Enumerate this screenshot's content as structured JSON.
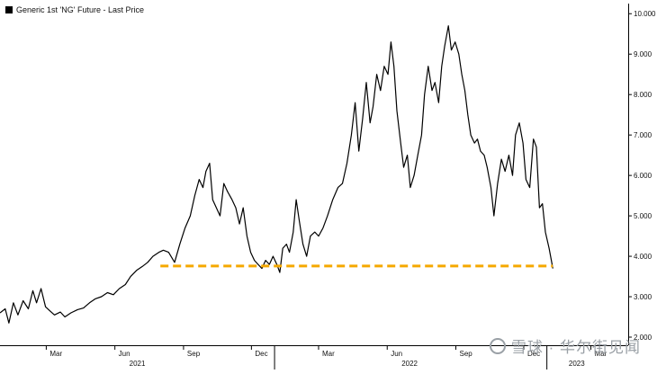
{
  "chart_data": {
    "type": "line",
    "legend": "Generic 1st 'NG' Future - Last Price",
    "x_ticks": [
      {
        "label": "Mar",
        "date": "2021-03-01"
      },
      {
        "label": "Jun",
        "date": "2021-06-01"
      },
      {
        "label": "Sep",
        "date": "2021-09-01"
      },
      {
        "label": "Dec",
        "date": "2021-12-01"
      },
      {
        "label": "Mar",
        "date": "2022-03-01"
      },
      {
        "label": "Jun",
        "date": "2022-06-01"
      },
      {
        "label": "Sep",
        "date": "2022-09-01"
      },
      {
        "label": "Dec",
        "date": "2022-12-01"
      },
      {
        "label": "Mar",
        "date": "2023-03-01"
      }
    ],
    "years": [
      {
        "label": "2021",
        "date": "2021-07-01"
      },
      {
        "label": "2022",
        "date": "2022-07-01"
      },
      {
        "label": "2023",
        "date": "2023-02-10"
      }
    ],
    "y_ticks": [
      "2.000",
      "3.000",
      "4.000",
      "5.000",
      "6.000",
      "7.000",
      "8.000",
      "9.000",
      "10.000"
    ],
    "ylim": [
      1.8,
      10.25
    ],
    "xlim": [
      "2020-12-29",
      "2023-04-20"
    ],
    "series": [
      {
        "color": "#000000",
        "points": [
          [
            "2020-12-29",
            2.6
          ],
          [
            "2021-01-05",
            2.7
          ],
          [
            "2021-01-10",
            2.35
          ],
          [
            "2021-01-16",
            2.85
          ],
          [
            "2021-01-22",
            2.55
          ],
          [
            "2021-01-29",
            2.9
          ],
          [
            "2021-02-05",
            2.7
          ],
          [
            "2021-02-11",
            3.15
          ],
          [
            "2021-02-16",
            2.85
          ],
          [
            "2021-02-22",
            3.2
          ],
          [
            "2021-02-28",
            2.75
          ],
          [
            "2021-03-06",
            2.65
          ],
          [
            "2021-03-12",
            2.55
          ],
          [
            "2021-03-20",
            2.62
          ],
          [
            "2021-03-26",
            2.5
          ],
          [
            "2021-04-03",
            2.6
          ],
          [
            "2021-04-12",
            2.68
          ],
          [
            "2021-04-20",
            2.72
          ],
          [
            "2021-04-28",
            2.85
          ],
          [
            "2021-05-06",
            2.95
          ],
          [
            "2021-05-14",
            3.0
          ],
          [
            "2021-05-22",
            3.1
          ],
          [
            "2021-05-30",
            3.05
          ],
          [
            "2021-06-07",
            3.2
          ],
          [
            "2021-06-15",
            3.3
          ],
          [
            "2021-06-22",
            3.5
          ],
          [
            "2021-06-30",
            3.65
          ],
          [
            "2021-07-08",
            3.75
          ],
          [
            "2021-07-15",
            3.85
          ],
          [
            "2021-07-22",
            4.0
          ],
          [
            "2021-07-30",
            4.1
          ],
          [
            "2021-08-05",
            4.15
          ],
          [
            "2021-08-12",
            4.1
          ],
          [
            "2021-08-20",
            3.85
          ],
          [
            "2021-08-27",
            4.3
          ],
          [
            "2021-09-03",
            4.7
          ],
          [
            "2021-09-10",
            5.0
          ],
          [
            "2021-09-16",
            5.5
          ],
          [
            "2021-09-22",
            5.9
          ],
          [
            "2021-09-27",
            5.7
          ],
          [
            "2021-10-01",
            6.1
          ],
          [
            "2021-10-06",
            6.3
          ],
          [
            "2021-10-10",
            5.4
          ],
          [
            "2021-10-15",
            5.2
          ],
          [
            "2021-10-20",
            5.0
          ],
          [
            "2021-10-25",
            5.8
          ],
          [
            "2021-10-30",
            5.6
          ],
          [
            "2021-11-05",
            5.4
          ],
          [
            "2021-11-10",
            5.2
          ],
          [
            "2021-11-15",
            4.8
          ],
          [
            "2021-11-20",
            5.2
          ],
          [
            "2021-11-25",
            4.5
          ],
          [
            "2021-11-30",
            4.1
          ],
          [
            "2021-12-05",
            3.9
          ],
          [
            "2021-12-10",
            3.8
          ],
          [
            "2021-12-15",
            3.7
          ],
          [
            "2021-12-20",
            3.9
          ],
          [
            "2021-12-25",
            3.8
          ],
          [
            "2021-12-30",
            4.0
          ],
          [
            "2022-01-04",
            3.8
          ],
          [
            "2022-01-08",
            3.6
          ],
          [
            "2022-01-12",
            4.2
          ],
          [
            "2022-01-17",
            4.3
          ],
          [
            "2022-01-21",
            4.1
          ],
          [
            "2022-01-26",
            4.6
          ],
          [
            "2022-01-30",
            5.4
          ],
          [
            "2022-02-03",
            4.9
          ],
          [
            "2022-02-08",
            4.3
          ],
          [
            "2022-02-13",
            4.0
          ],
          [
            "2022-02-18",
            4.5
          ],
          [
            "2022-02-24",
            4.6
          ],
          [
            "2022-03-01",
            4.5
          ],
          [
            "2022-03-07",
            4.7
          ],
          [
            "2022-03-13",
            5.0
          ],
          [
            "2022-03-20",
            5.4
          ],
          [
            "2022-03-27",
            5.7
          ],
          [
            "2022-04-02",
            5.8
          ],
          [
            "2022-04-08",
            6.3
          ],
          [
            "2022-04-14",
            7.0
          ],
          [
            "2022-04-19",
            7.8
          ],
          [
            "2022-04-24",
            6.6
          ],
          [
            "2022-04-29",
            7.4
          ],
          [
            "2022-05-04",
            8.3
          ],
          [
            "2022-05-09",
            7.3
          ],
          [
            "2022-05-13",
            7.7
          ],
          [
            "2022-05-18",
            8.5
          ],
          [
            "2022-05-23",
            8.1
          ],
          [
            "2022-05-28",
            8.7
          ],
          [
            "2022-06-02",
            8.5
          ],
          [
            "2022-06-06",
            9.3
          ],
          [
            "2022-06-10",
            8.7
          ],
          [
            "2022-06-14",
            7.6
          ],
          [
            "2022-06-19",
            6.8
          ],
          [
            "2022-06-23",
            6.2
          ],
          [
            "2022-06-28",
            6.5
          ],
          [
            "2022-07-02",
            5.7
          ],
          [
            "2022-07-07",
            6.0
          ],
          [
            "2022-07-12",
            6.5
          ],
          [
            "2022-07-17",
            7.0
          ],
          [
            "2022-07-21",
            8.0
          ],
          [
            "2022-07-26",
            8.7
          ],
          [
            "2022-07-31",
            8.1
          ],
          [
            "2022-08-04",
            8.3
          ],
          [
            "2022-08-09",
            7.8
          ],
          [
            "2022-08-13",
            8.7
          ],
          [
            "2022-08-17",
            9.2
          ],
          [
            "2022-08-22",
            9.7
          ],
          [
            "2022-08-26",
            9.1
          ],
          [
            "2022-08-31",
            9.3
          ],
          [
            "2022-09-05",
            9.0
          ],
          [
            "2022-09-09",
            8.5
          ],
          [
            "2022-09-13",
            8.1
          ],
          [
            "2022-09-17",
            7.5
          ],
          [
            "2022-09-21",
            7.0
          ],
          [
            "2022-09-26",
            6.8
          ],
          [
            "2022-09-30",
            6.9
          ],
          [
            "2022-10-04",
            6.6
          ],
          [
            "2022-10-09",
            6.5
          ],
          [
            "2022-10-13",
            6.2
          ],
          [
            "2022-10-18",
            5.7
          ],
          [
            "2022-10-22",
            5.0
          ],
          [
            "2022-10-27",
            5.8
          ],
          [
            "2022-11-01",
            6.4
          ],
          [
            "2022-11-06",
            6.1
          ],
          [
            "2022-11-11",
            6.5
          ],
          [
            "2022-11-16",
            6.0
          ],
          [
            "2022-11-20",
            7.0
          ],
          [
            "2022-11-25",
            7.3
          ],
          [
            "2022-11-30",
            6.8
          ],
          [
            "2022-12-04",
            5.9
          ],
          [
            "2022-12-09",
            5.7
          ],
          [
            "2022-12-14",
            6.9
          ],
          [
            "2022-12-18",
            6.7
          ],
          [
            "2022-12-22",
            5.2
          ],
          [
            "2022-12-26",
            5.3
          ],
          [
            "2022-12-30",
            4.6
          ],
          [
            "2023-01-04",
            4.2
          ],
          [
            "2023-01-09",
            3.7
          ]
        ]
      },
      {
        "color": "#f5a800",
        "dashed": true,
        "points": [
          [
            "2021-08-01",
            3.76
          ],
          [
            "2023-01-09",
            3.76
          ]
        ]
      }
    ],
    "grid": false,
    "y_axis_side": "right"
  },
  "watermark": "雪球 · 华尔街见闻"
}
